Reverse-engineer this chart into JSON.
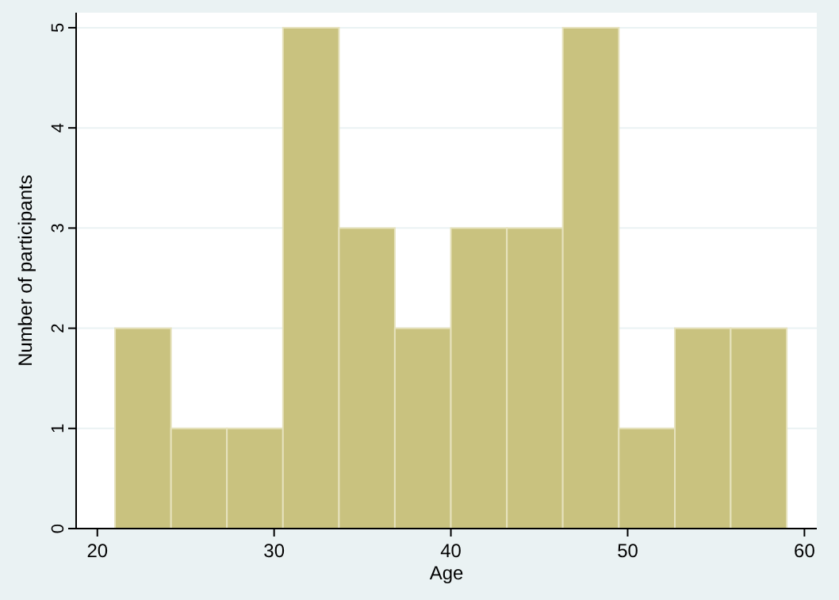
{
  "chart_data": {
    "type": "histogram",
    "xlabel": "Age",
    "ylabel": "Number of participants",
    "bins": [
      21,
      24.17,
      27.33,
      30.5,
      33.67,
      36.83,
      40,
      43.17,
      46.33,
      49.5,
      52.67,
      55.83,
      59
    ],
    "values": [
      2,
      1,
      1,
      5,
      3,
      2,
      3,
      3,
      5,
      1,
      2,
      2
    ],
    "color": "#c9c27f",
    "xlim": [
      18.8,
      60.7
    ],
    "xticks": [
      20,
      30,
      40,
      50,
      60
    ],
    "ylim": [
      0,
      5.15
    ],
    "yticks": [
      0,
      1,
      2,
      3,
      4,
      5
    ],
    "grid": "y"
  }
}
